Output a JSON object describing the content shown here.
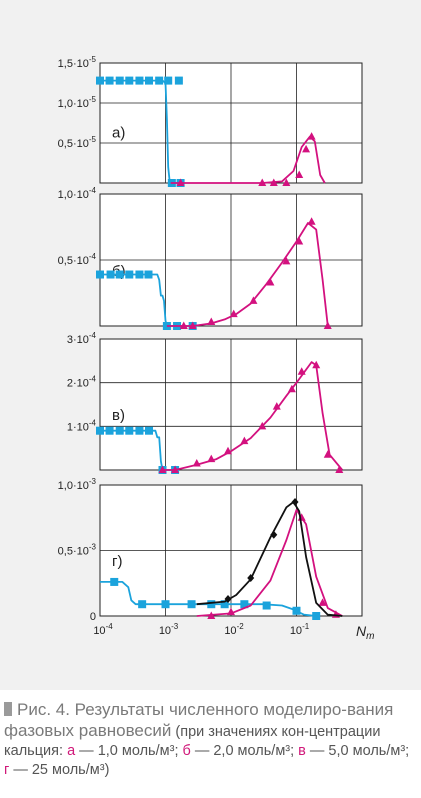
{
  "caption": {
    "title": "Рис. 4. Результаты численного моделиро-вания фазовых равновесий",
    "text_open": " (при значениях кон-центрации кальция: ",
    "a_letter": "а",
    "a_value": " — 1,0 моль/м³; ",
    "b_letter": "б",
    "b_value": " — 2,0 моль/м³; ",
    "v_letter": "в",
    "v_value": " — 5,0 моль/м³; ",
    "g_letter": "г",
    "g_value": " — 25 моль/м³)"
  },
  "colors": {
    "cyan": "#1ba3dc",
    "magenta": "#d3117f",
    "black": "#111111",
    "grid": "#222222"
  },
  "chart_data": {
    "type": "line",
    "x_scale": "log",
    "xlim": [
      0.0001,
      1
    ],
    "xlabel": "Nm",
    "x_ticks": [
      {
        "v": 0.0001,
        "b": "10",
        "e": "-4"
      },
      {
        "v": 0.001,
        "b": "10",
        "e": "-3"
      },
      {
        "v": 0.01,
        "b": "10",
        "e": "-2"
      },
      {
        "v": 0.1,
        "b": "10",
        "e": "-1"
      }
    ],
    "panels": [
      {
        "label": "а)",
        "ylim": [
          0,
          1.5e-05
        ],
        "y_ticks": [
          {
            "v": 1.5e-05,
            "b": "1,5·10",
            "e": "-5"
          },
          {
            "v": 1e-05,
            "b": "1,0·10",
            "e": "-5"
          },
          {
            "v": 5e-06,
            "b": "0,5·10",
            "e": "-5"
          }
        ],
        "series": [
          {
            "color": "cyan",
            "marker": "square",
            "curve": [
              [
                0.0001,
                1.28e-05
              ],
              [
                0.0009,
                1.28e-05
              ],
              [
                0.001,
                1.25e-05
              ],
              [
                0.00105,
                8e-06
              ],
              [
                0.0011,
                2e-06
              ],
              [
                0.00115,
                4e-07
              ],
              [
                0.0012,
                0
              ],
              [
                0.0017,
                0
              ]
            ],
            "points": [
              [
                0.0001,
                1.28e-05
              ],
              [
                0.00014,
                1.28e-05
              ],
              [
                0.0002,
                1.28e-05
              ],
              [
                0.00028,
                1.28e-05
              ],
              [
                0.0004,
                1.28e-05
              ],
              [
                0.00056,
                1.28e-05
              ],
              [
                0.0008,
                1.28e-05
              ],
              [
                0.0011,
                1.28e-05
              ],
              [
                0.0016,
                1.28e-05
              ],
              [
                0.00125,
                0
              ],
              [
                0.0017,
                0
              ]
            ]
          },
          {
            "color": "magenta",
            "marker": "triangle",
            "curve": [
              [
                0.0012,
                0
              ],
              [
                0.03,
                0
              ],
              [
                0.06,
                2e-07
              ],
              [
                0.09,
                1.5e-06
              ],
              [
                0.12,
                4.5e-06
              ],
              [
                0.16,
                5.8e-06
              ],
              [
                0.19,
                5.2e-06
              ],
              [
                0.23,
                1e-06
              ],
              [
                0.27,
                0
              ]
            ],
            "points": [
              [
                0.0017,
                0
              ],
              [
                0.03,
                0
              ],
              [
                0.045,
                0
              ],
              [
                0.07,
                0
              ],
              [
                0.11,
                1e-06
              ],
              [
                0.14,
                4.2e-06
              ],
              [
                0.17,
                5.8e-06
              ]
            ]
          }
        ]
      },
      {
        "label": "б)",
        "ylim": [
          0,
          0.0001
        ],
        "y_ticks": [
          {
            "v": 0.0001,
            "b": "1,0·10",
            "e": "-4"
          },
          {
            "v": 5e-05,
            "b": "0,5·10",
            "e": "-4"
          }
        ],
        "series": [
          {
            "color": "cyan",
            "marker": "square",
            "curve": [
              [
                0.0001,
                3.9e-05
              ],
              [
                0.00075,
                3.9e-05
              ],
              [
                0.0008,
                3.5e-05
              ],
              [
                0.00085,
                2.3e-05
              ],
              [
                0.0009,
                2.3e-05
              ],
              [
                0.00095,
                1.9e-05
              ],
              [
                0.001,
                4e-06
              ],
              [
                0.00105,
                0
              ],
              [
                0.0026,
                0
              ]
            ],
            "points": [
              [
                0.0001,
                3.9e-05
              ],
              [
                0.000145,
                3.9e-05
              ],
              [
                0.0002,
                3.9e-05
              ],
              [
                0.00028,
                3.9e-05
              ],
              [
                0.0004,
                3.9e-05
              ],
              [
                0.00055,
                3.9e-05
              ],
              [
                0.00105,
                0
              ],
              [
                0.0015,
                0
              ],
              [
                0.0026,
                0
              ]
            ]
          },
          {
            "color": "magenta",
            "marker": "triangle",
            "curve": [
              [
                0.00105,
                0
              ],
              [
                0.0026,
                0
              ],
              [
                0.005,
                2e-06
              ],
              [
                0.008,
                5e-06
              ],
              [
                0.012,
                9e-06
              ],
              [
                0.02,
                1.7e-05
              ],
              [
                0.035,
                3.2e-05
              ],
              [
                0.06,
                4.8e-05
              ],
              [
                0.1,
                6.4e-05
              ],
              [
                0.15,
                7.8e-05
              ],
              [
                0.2,
                7.3e-05
              ],
              [
                0.25,
                3.5e-05
              ],
              [
                0.3,
                0
              ]
            ],
            "points": [
              [
                0.0019,
                0
              ],
              [
                0.0026,
                0
              ],
              [
                0.005,
                3e-06
              ],
              [
                0.011,
                9e-06
              ],
              [
                0.022,
                1.9e-05
              ],
              [
                0.04,
                3.3e-05
              ],
              [
                0.07,
                4.9e-05
              ],
              [
                0.11,
                6.4e-05
              ],
              [
                0.17,
                7.9e-05
              ],
              [
                0.3,
                0
              ]
            ]
          }
        ]
      },
      {
        "label": "в)",
        "ylim": [
          0,
          0.0003
        ],
        "y_ticks": [
          {
            "v": 0.0003,
            "b": "3·10",
            "e": "-4"
          },
          {
            "v": 0.0002,
            "b": "2·10",
            "e": "-4"
          },
          {
            "v": 0.0001,
            "b": "1·10",
            "e": "-4"
          }
        ],
        "series": [
          {
            "color": "cyan",
            "marker": "square",
            "curve": [
              [
                0.0001,
                9e-05
              ],
              [
                0.0007,
                9e-05
              ],
              [
                0.00075,
                7.5e-05
              ],
              [
                0.0008,
                7.5e-05
              ],
              [
                0.00085,
                2e-05
              ],
              [
                0.0009,
                0
              ],
              [
                0.0014,
                0
              ]
            ],
            "points": [
              [
                0.0001,
                9e-05
              ],
              [
                0.00014,
                9e-05
              ],
              [
                0.0002,
                9e-05
              ],
              [
                0.00028,
                9e-05
              ],
              [
                0.0004,
                9e-05
              ],
              [
                0.00056,
                9e-05
              ],
              [
                0.0009,
                0
              ],
              [
                0.0014,
                0
              ]
            ]
          },
          {
            "color": "magenta",
            "marker": "triangle",
            "curve": [
              [
                0.0009,
                0
              ],
              [
                0.0014,
                0
              ],
              [
                0.003,
                1.2e-05
              ],
              [
                0.006,
                2.5e-05
              ],
              [
                0.01,
                4.3e-05
              ],
              [
                0.02,
                7.3e-05
              ],
              [
                0.04,
                0.00012
              ],
              [
                0.07,
                0.00017
              ],
              [
                0.1,
                0.0002
              ],
              [
                0.17,
                0.000247
              ],
              [
                0.2,
                0.00024
              ],
              [
                0.25,
                0.00013
              ],
              [
                0.32,
                3.5e-05
              ],
              [
                0.5,
                0
              ]
            ],
            "points": [
              [
                0.0009,
                0
              ],
              [
                0.0014,
                0
              ],
              [
                0.003,
                1.5e-05
              ],
              [
                0.005,
                2.5e-05
              ],
              [
                0.009,
                4.3e-05
              ],
              [
                0.016,
                6.6e-05
              ],
              [
                0.03,
                0.0001
              ],
              [
                0.05,
                0.000145
              ],
              [
                0.085,
                0.000185
              ],
              [
                0.12,
                0.000225
              ],
              [
                0.2,
                0.00024
              ],
              [
                0.3,
                3.5e-05
              ],
              [
                0.45,
                0
              ]
            ]
          }
        ]
      },
      {
        "label": "г)",
        "ylim": [
          0,
          0.001
        ],
        "y_ticks": [
          {
            "v": 0.001,
            "b": "1,0·10",
            "e": "-3"
          },
          {
            "v": 0.0005,
            "b": "0,5·10",
            "e": "-3"
          },
          {
            "v": 0,
            "b": "0",
            "e": ""
          }
        ],
        "series": [
          {
            "color": "cyan",
            "marker": "square",
            "curve": [
              [
                0.0001,
                0.00026
              ],
              [
                0.00022,
                0.00026
              ],
              [
                0.00027,
                0.00022
              ],
              [
                0.0003,
                0.00012
              ],
              [
                0.00035,
                9e-05
              ],
              [
                0.0008,
                9e-05
              ],
              [
                0.03,
                9e-05
              ],
              [
                0.06,
                8e-05
              ],
              [
                0.09,
                5e-05
              ],
              [
                0.13,
                1e-05
              ],
              [
                0.2,
                0
              ]
            ],
            "points": [
              [
                0.000165,
                0.00026
              ],
              [
                0.00044,
                9e-05
              ],
              [
                0.001,
                9e-05
              ],
              [
                0.0025,
                9e-05
              ],
              [
                0.005,
                9e-05
              ],
              [
                0.008,
                9e-05
              ],
              [
                0.016,
                9e-05
              ],
              [
                0.035,
                8e-05
              ],
              [
                0.1,
                4e-05
              ],
              [
                0.2,
                0
              ]
            ]
          },
          {
            "color": "magenta",
            "marker": "triangle",
            "curve": [
              [
                0.003,
                0
              ],
              [
                0.01,
                2e-05
              ],
              [
                0.02,
                8e-05
              ],
              [
                0.04,
                0.00027
              ],
              [
                0.07,
                0.00058
              ],
              [
                0.1,
                0.00081
              ],
              [
                0.14,
                0.0007
              ],
              [
                0.2,
                0.0003
              ],
              [
                0.3,
                6e-05
              ],
              [
                0.5,
                0
              ]
            ],
            "points": [
              [
                0.005,
                0
              ],
              [
                0.01,
                3e-05
              ],
              [
                0.12,
                0.00075
              ],
              [
                0.25,
                0.0001
              ],
              [
                0.4,
                1e-05
              ]
            ]
          },
          {
            "color": "black",
            "marker": "diamond",
            "curve": [
              [
                0.003,
                9e-05
              ],
              [
                0.008,
                0.00011
              ],
              [
                0.012,
                0.00016
              ],
              [
                0.02,
                0.00028
              ],
              [
                0.04,
                0.0006
              ],
              [
                0.07,
                0.00083
              ],
              [
                0.09,
                0.00087
              ],
              [
                0.11,
                0.0008
              ],
              [
                0.14,
                0.00045
              ],
              [
                0.2,
                0.0001
              ],
              [
                0.3,
                1e-05
              ],
              [
                0.5,
                0
              ]
            ],
            "points": [
              [
                0.009,
                0.00013
              ],
              [
                0.02,
                0.00029
              ],
              [
                0.045,
                0.00062
              ],
              [
                0.095,
                0.00087
              ]
            ]
          }
        ]
      }
    ]
  }
}
